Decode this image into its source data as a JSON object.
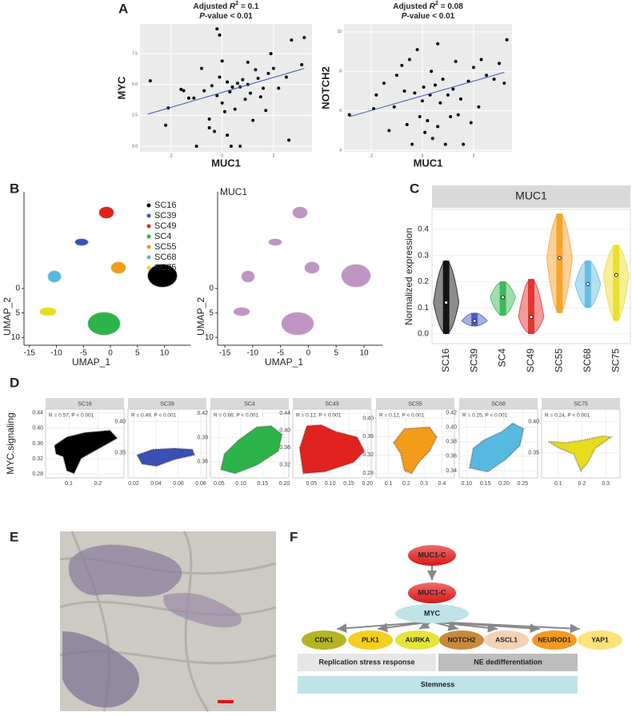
{
  "panel_labels": [
    "A",
    "B",
    "C",
    "D",
    "E",
    "F"
  ],
  "chart_data": [
    {
      "type": "scatter",
      "title": [
        "Adjusted ",
        "R",
        "2",
        " = 0.1"
      ],
      "subtitle": [
        "P",
        "-value < 0.01"
      ],
      "xlabel": "MUC1",
      "ylabel": "MYC",
      "color": "#000000",
      "trend_color": "#3b5bb5",
      "xlim": [
        -3.2,
        3.5
      ],
      "ylim": [
        -0.45,
        9.9
      ],
      "xticks": [
        -2,
        0,
        2
      ],
      "yticks": [
        {
          "value": 0,
          "label": "0.0"
        },
        2.5,
        {
          "value": 5,
          "label": "5.0"
        },
        7.5
      ],
      "x": [
        -2.8,
        -2.2,
        -2.1,
        -1.6,
        -1.5,
        -1.3,
        -1.1,
        -1,
        -0.8,
        -0.7,
        -0.5,
        -0.4,
        -0.3,
        -0.2,
        -0.1,
        0,
        0.1,
        0.2,
        0.2,
        0.3,
        0.35,
        0.4,
        0.5,
        0.6,
        0.7,
        0.8,
        0.9,
        1,
        1.1,
        1.2,
        1.3,
        1.4,
        1.5,
        1.6,
        1.7,
        1.8,
        2,
        2.2,
        2.5,
        2.6,
        2.7,
        3.1,
        3.2,
        -0.2,
        -0.1,
        0.7,
        -0.5,
        1.9,
        1,
        0
      ],
      "y": [
        5.3,
        1.7,
        3.1,
        4.6,
        4.5,
        3.9,
        3.9,
        0,
        6.3,
        4.5,
        2.2,
        4.9,
        1.2,
        4.1,
        5.6,
        3.5,
        2.8,
        5.2,
        0.9,
        4.4,
        0,
        4.8,
        3,
        5.1,
        4.8,
        5.4,
        3.8,
        5,
        4.3,
        2.1,
        6.2,
        5.5,
        4,
        4.7,
        2.9,
        5.9,
        6.3,
        4.7,
        5.6,
        0.5,
        8.6,
        6.6,
        8.8,
        9.5,
        9,
        0,
        1.5,
        7.5,
        6.8,
        6.9
      ],
      "trend": {
        "x": [
          -2.9,
          3.2
        ],
        "y": [
          2.6,
          6.3
        ]
      }
    },
    {
      "type": "scatter",
      "title": [
        "Adjusted ",
        "R",
        "2",
        " = 0.08"
      ],
      "subtitle": [
        "P",
        "-value < 0.01"
      ],
      "xlabel": "MUC1",
      "ylabel": "NOTCH2",
      "color": "#000000",
      "trend_color": "#3b5bb5",
      "xlim": [
        -3.06,
        3.5
      ],
      "ylim": [
        3.92,
        10.4
      ],
      "xticks": [
        -2,
        0,
        2
      ],
      "yticks": [
        4,
        6,
        8,
        10
      ],
      "x": [
        -2.85,
        -1.9,
        -1.8,
        -1.5,
        -1.3,
        -1.1,
        -1,
        -0.8,
        -0.7,
        -0.5,
        -0.3,
        -0.2,
        -0.1,
        0,
        0.05,
        0.1,
        0.2,
        0.3,
        0.35,
        0.4,
        0.5,
        0.6,
        0.7,
        0.8,
        0.9,
        1,
        1.1,
        1.2,
        1.3,
        1.4,
        1.5,
        1.6,
        1.8,
        2,
        2.2,
        2.3,
        2.5,
        3,
        3.2,
        3.3,
        -0.4,
        0.6,
        1.9,
        -0.6,
        2.8
      ],
      "y": [
        5.8,
        6.1,
        6.8,
        7.4,
        5,
        6.2,
        7.8,
        8.3,
        7,
        8.6,
        6.9,
        9.1,
        5.7,
        6.5,
        7.2,
        4.9,
        5.5,
        6.8,
        8,
        4.6,
        7.3,
        5.2,
        6.4,
        7.6,
        4.3,
        6.8,
        5.7,
        7.1,
        8.5,
        5.8,
        6.6,
        4.3,
        7.5,
        8.2,
        6.2,
        8.6,
        7.8,
        8.4,
        7.4,
        9.6,
        4.3,
        9.4,
        5.4,
        5.3,
        7.6
      ],
      "trend": {
        "x": [
          -2.85,
          3.2
        ],
        "y": [
          5.7,
          7.95
        ]
      }
    },
    {
      "type": "umap",
      "xlabel": "UMAP_1",
      "ylabel": "UMAP_2",
      "y_inverted": true,
      "xlim": [
        -16,
        14.8
      ],
      "ylim": [
        -19.8,
        11.6
      ],
      "xticks": [
        -15,
        -10,
        -5,
        0,
        5,
        10
      ],
      "yticks": [
        0,
        5,
        10
      ],
      "series": [
        {
          "name": "SC16",
          "color": "#000000"
        },
        {
          "name": "SC39",
          "color": "#3a50b5"
        },
        {
          "name": "SC49",
          "color": "#e0231f"
        },
        {
          "name": "SC4",
          "color": "#2cb34a"
        },
        {
          "name": "SC55",
          "color": "#f39c1a"
        },
        {
          "name": "SC68",
          "color": "#57b8e0"
        },
        {
          "name": "SC75",
          "color": "#e8dc1e"
        }
      ]
    },
    {
      "type": "umap",
      "title": "MUC1",
      "xlabel": "UMAP_1",
      "ylabel": "UMAP_2",
      "y_inverted": true,
      "color": "#8b3f94",
      "xlim": [
        -16.3,
        13.3
      ],
      "ylim": [
        -19.8,
        11.6
      ],
      "xticks": [
        -15,
        -10,
        -5,
        0,
        5,
        10
      ],
      "yticks": [
        0,
        5,
        10
      ]
    },
    {
      "type": "violin",
      "title": "MUC1",
      "ylabel": "Normalized expression",
      "categories": [
        "SC16",
        "SC39",
        "SC4",
        "SC49",
        "SC55",
        "SC68",
        "SC75"
      ],
      "values": [
        0.12,
        0.05,
        0.14,
        0.065,
        0.29,
        0.19,
        0.225
      ],
      "min": [
        0,
        0.03,
        0.07,
        0,
        0.08,
        0.1,
        0.05
      ],
      "max": [
        0.28,
        0.08,
        0.2,
        0.21,
        0.46,
        0.28,
        0.34
      ],
      "colors": [
        "#000000",
        "#3a50b5",
        "#2cb34a",
        "#e0231f",
        "#f39c1a",
        "#57b8e0",
        "#e8dc1e"
      ],
      "ylim": [
        -0.037,
        0.476
      ],
      "yticks": [
        {
          "value": 0,
          "label": "0.0"
        },
        0.1,
        0.2,
        0.3,
        0.4
      ]
    },
    {
      "type": "facet_scatter",
      "ylabel": "MYC.signaling",
      "panels": [
        {
          "name": "SC16",
          "annotation": "R = 0.57, P < 0.001",
          "color": "#000000",
          "xlim": [
            0.02,
            0.29
          ],
          "ylim": [
            0.27,
            0.45
          ],
          "xticks": [
            0.1,
            0.2
          ],
          "yticks": [
            0.28,
            0.32,
            0.36,
            {
              "value": 0.4,
              "label": "0.40"
            },
            0.44
          ]
        },
        {
          "name": "SC39",
          "annotation": "R = 0.49, P < 0.001",
          "color": "#3a50b5",
          "xlim": [
            0.015,
            0.085
          ],
          "ylim": [
            0.31,
            0.42
          ],
          "xticks": [
            0.02,
            0.04,
            0.06,
            0.08
          ],
          "yticks": [
            0.35,
            {
              "value": 0.4,
              "label": "0.40"
            }
          ]
        },
        {
          "name": "SC4",
          "annotation": "R = 0.66, P < 0.001",
          "color": "#2cb34a",
          "xlim": [
            0.03,
            0.21
          ],
          "ylim": [
            0.34,
            0.425
          ],
          "xticks": [
            0.05,
            {
              "value": 0.1,
              "label": "0.10"
            },
            0.15,
            {
              "value": 0.2,
              "label": "0.20"
            }
          ],
          "yticks": [
            0.36,
            0.39,
            0.42
          ]
        },
        {
          "name": "SC49",
          "annotation": "R = 0.12, P < 0.001",
          "color": "#e0231f",
          "xlim": [
            0,
            0.21
          ],
          "ylim": [
            0.29,
            0.45
          ],
          "xticks": [
            0.05,
            {
              "value": 0.1,
              "label": "0.10"
            },
            0.15,
            {
              "value": 0.2,
              "label": "0.20"
            }
          ],
          "yticks": [
            0.32,
            0.36,
            {
              "value": 0.4,
              "label": "0.40"
            },
            0.44
          ]
        },
        {
          "name": "SC55",
          "annotation": "R = 0.12, P < 0.001",
          "color": "#f39c1a",
          "xlim": [
            0.03,
            0.47
          ],
          "ylim": [
            0.27,
            0.42
          ],
          "xticks": [
            0.1,
            0.2,
            0.3,
            0.4
          ],
          "yticks": [
            0.28,
            0.32,
            0.36,
            {
              "value": 0.4,
              "label": "0.40"
            }
          ]
        },
        {
          "name": "SC68",
          "annotation": "R = 0.25, P < 0.001",
          "color": "#57b8e0",
          "xlim": [
            0.08,
            0.29
          ],
          "ylim": [
            0.33,
            0.425
          ],
          "xticks": [
            {
              "value": 0.1,
              "label": "0.10"
            },
            0.15,
            {
              "value": 0.2,
              "label": "0.20"
            },
            0.25
          ],
          "yticks": [
            0.34,
            0.36,
            0.38,
            {
              "value": 0.4,
              "label": "0.40"
            },
            0.42
          ]
        },
        {
          "name": "SC75",
          "annotation": "R = 0.24, P < 0.001",
          "color": "#e8dc1e",
          "xlim": [
            0.03,
            0.36
          ],
          "ylim": [
            0.31,
            0.42
          ],
          "xticks": [
            0.1,
            0.2,
            0.3
          ],
          "yticks": [
            0.35,
            {
              "value": 0.4,
              "label": "0.40"
            }
          ]
        }
      ]
    }
  ],
  "diagram": {
    "sources": [
      "MUC1-C",
      "MUC1-C"
    ],
    "hub": "MYC",
    "targets": [
      {
        "label": "CDK1",
        "color": "#b5b422"
      },
      {
        "label": "PLK1",
        "color": "#f5cf1f"
      },
      {
        "label": "AURKA",
        "color": "#e6e43a"
      },
      {
        "label": "NOTCH2",
        "color": "#c78a3c"
      },
      {
        "label": "ASCL1",
        "color": "#f3d2b3"
      },
      {
        "label": "NEUROD1",
        "color": "#f59a23"
      },
      {
        "label": "YAP1",
        "color": "#fde37a"
      }
    ],
    "bars": [
      {
        "label": "Replication stress response",
        "color": "#e6e6e6"
      },
      {
        "label": "NE dedifferentiation",
        "color": "#bdbdbd"
      },
      {
        "label": "Stemness",
        "color": "#bfe3e6"
      }
    ]
  }
}
